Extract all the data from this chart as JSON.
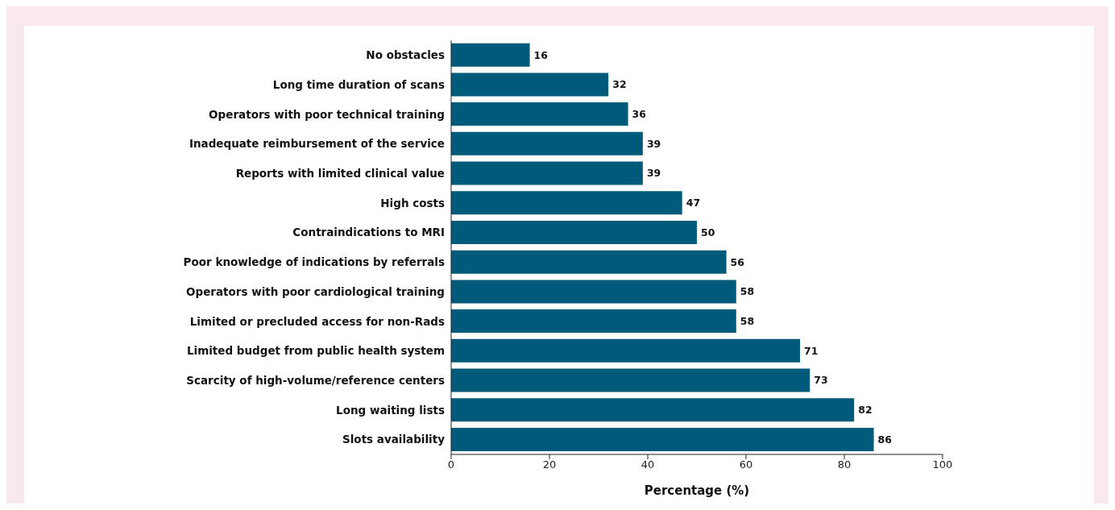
{
  "chart_data": {
    "type": "bar",
    "orientation": "horizontal",
    "xlabel": "Percentage (%)",
    "categories": [
      "No obstacles",
      "Long time duration of scans",
      "Operators with poor technical training",
      "Inadequate reimbursement of the service",
      "Reports with limited clinical value",
      "High costs",
      "Contraindications to MRI",
      "Poor knowledge of indications by referrals",
      "Operators with poor cardiological training",
      "Limited or precluded access for non-Rads",
      "Limited budget from public health system",
      "Scarcity of high-volume/reference centers",
      "Long waiting lists",
      "Slots availability"
    ],
    "values": [
      16,
      32,
      36,
      39,
      39,
      47,
      50,
      56,
      58,
      58,
      71,
      73,
      82,
      86
    ],
    "color": "#005a7a",
    "xlim": [
      0,
      100
    ],
    "xticks": [
      0,
      20,
      40,
      60,
      80,
      100
    ],
    "grid": false,
    "data_labels": true
  }
}
